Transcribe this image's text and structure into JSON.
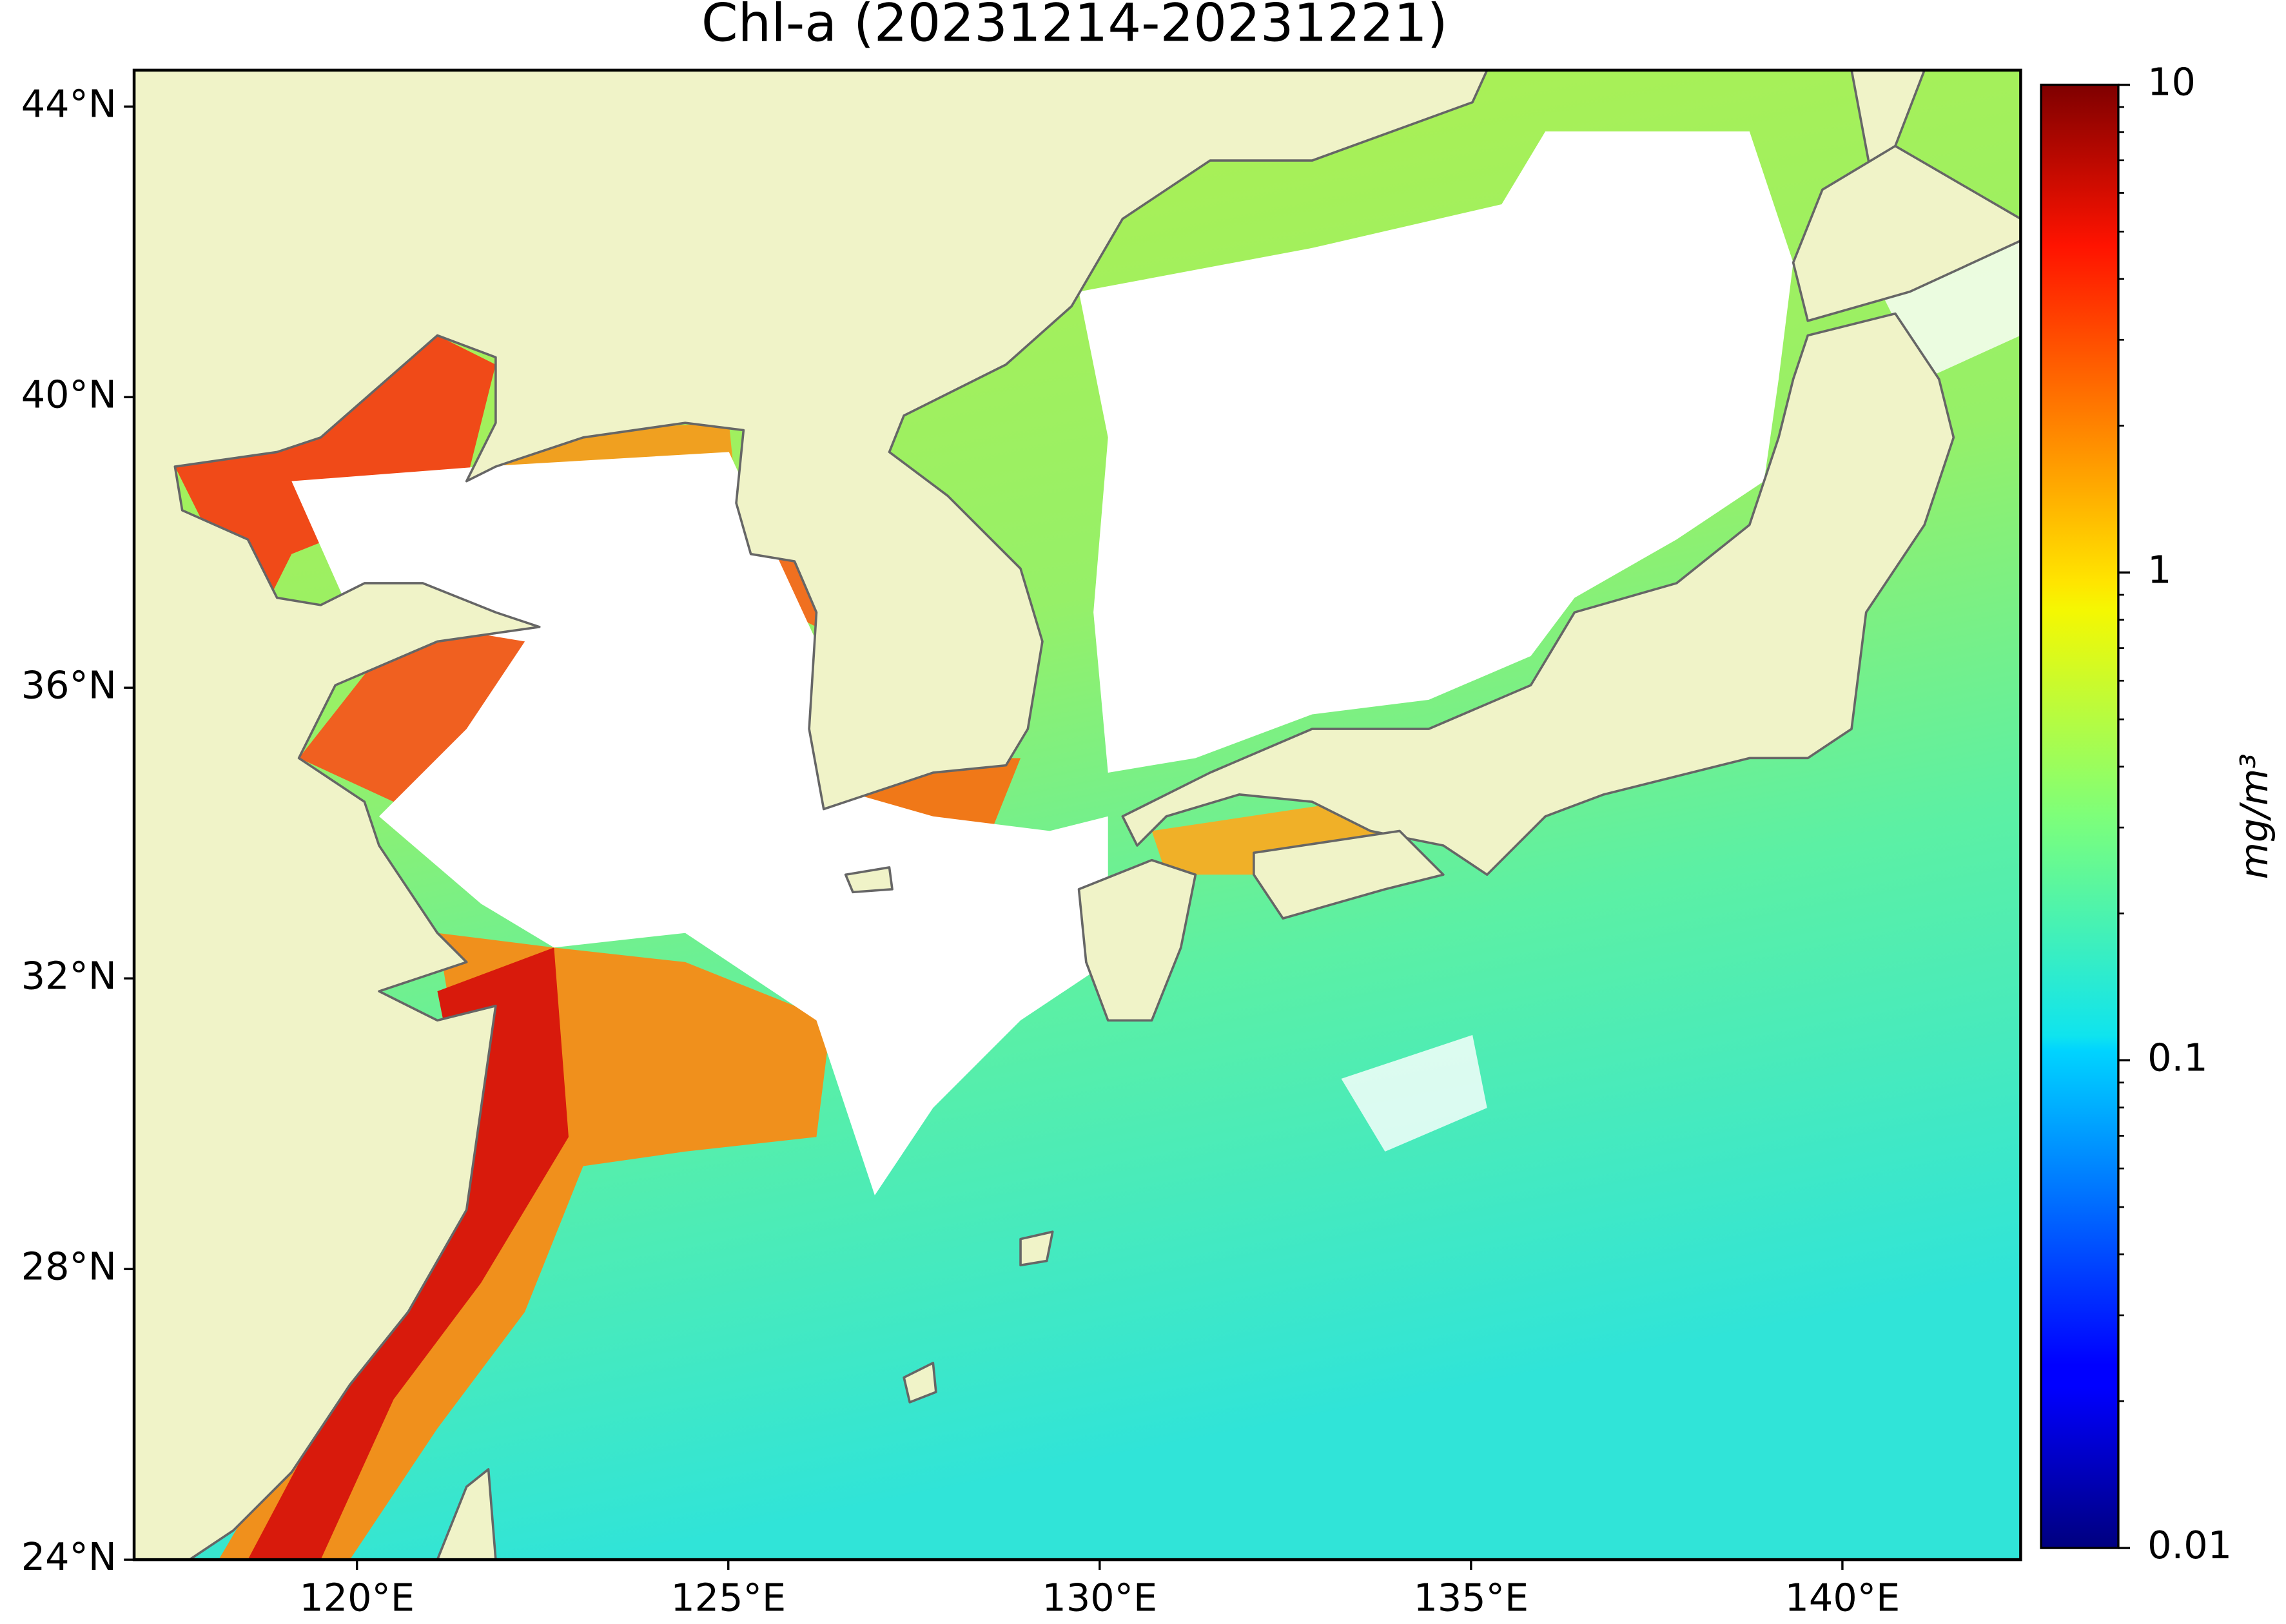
{
  "chart_data": {
    "type": "map",
    "title": "Chl-a (20231214-20231221)",
    "xlim": [
      117,
      142.4
    ],
    "ylim": [
      24,
      44.5
    ],
    "xticks": [
      {
        "value": 120,
        "label": "120°E"
      },
      {
        "value": 125,
        "label": "125°E"
      },
      {
        "value": 130,
        "label": "130°E"
      },
      {
        "value": 135,
        "label": "135°E"
      },
      {
        "value": 140,
        "label": "140°E"
      }
    ],
    "yticks": [
      {
        "value": 24,
        "label": "24°N"
      },
      {
        "value": 28,
        "label": "28°N"
      },
      {
        "value": 32,
        "label": "32°N"
      },
      {
        "value": 36,
        "label": "36°N"
      },
      {
        "value": 40,
        "label": "40°N"
      },
      {
        "value": 44,
        "label": "44°N"
      }
    ],
    "land_color": "#f0f3c8",
    "colorbar": {
      "label": "mg/m³",
      "scale": "log",
      "colormap": "jet",
      "lim": [
        0.01,
        10
      ],
      "ticks": [
        0.01,
        0.1,
        1,
        10
      ],
      "minor_ticks": [
        0.02,
        0.03,
        0.04,
        0.05,
        0.06,
        0.07,
        0.08,
        0.09,
        0.2,
        0.3,
        0.4,
        0.5,
        0.6,
        0.7,
        0.8,
        0.9,
        2,
        3,
        4,
        5,
        6,
        7,
        8,
        9
      ]
    }
  }
}
